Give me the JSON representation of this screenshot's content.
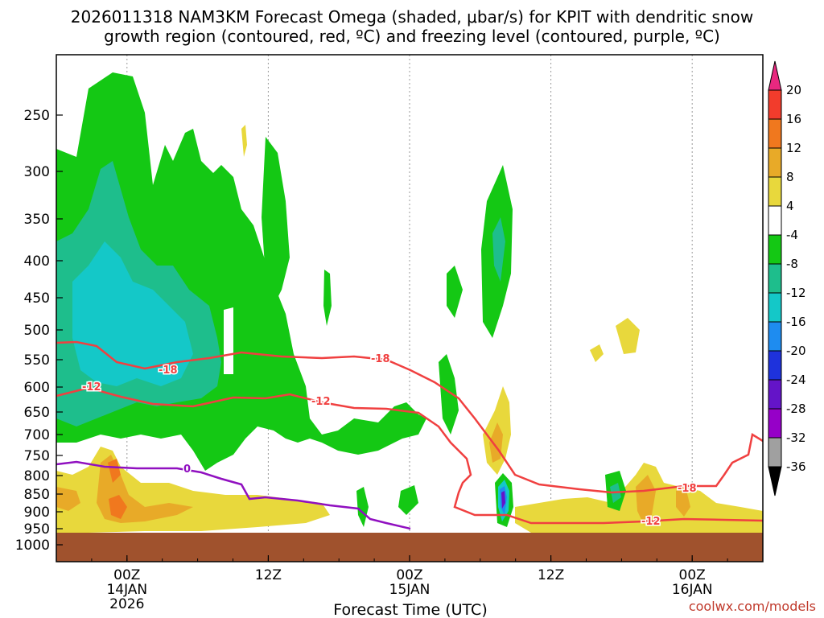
{
  "chart_data": {
    "type": "heatmap",
    "title_line1": "2026011318 NAM3KM Forecast Omega (shaded, μbar/s) for KPIT with dendritic snow",
    "title_line2": "growth region (contoured, red, ºC) and freezing level (contoured, purple, ºC)",
    "xlabel": "Forecast Time (UTC)",
    "credit": "coolwx.com/models",
    "y_ticks": [
      250,
      300,
      350,
      400,
      450,
      500,
      550,
      600,
      650,
      700,
      750,
      800,
      850,
      900,
      950,
      1000
    ],
    "x_ticks": [
      {
        "hour": 6,
        "line1": "00Z",
        "line2": "14JAN",
        "line3": "2026"
      },
      {
        "hour": 18,
        "line1": "12Z",
        "line2": "",
        "line3": ""
      },
      {
        "hour": 30,
        "line1": "00Z",
        "line2": "15JAN",
        "line3": ""
      },
      {
        "hour": 42,
        "line1": "12Z",
        "line2": "",
        "line3": ""
      },
      {
        "hour": 54,
        "line1": "00Z",
        "line2": "16JAN",
        "line3": ""
      }
    ],
    "x_range_hours": [
      0,
      60
    ],
    "colorbar": {
      "labels": [
        "20",
        "16",
        "12",
        "8",
        "4",
        "-4",
        "-8",
        "-12",
        "-16",
        "-20",
        "-24",
        "-28",
        "-32",
        "-36"
      ],
      "colors": [
        "#e8287f",
        "#f23c2c",
        "#f0781e",
        "#e8aa28",
        "#e8d83c",
        "#ffffff",
        "#14c814",
        "#1ebe8c",
        "#14c8c8",
        "#1e8cf0",
        "#1e32dc",
        "#6414c8",
        "#9600c8",
        "#a0a0a0",
        "#000000"
      ]
    },
    "contours": {
      "dgz_top_label": "-18",
      "dgz_bottom_label": "-12",
      "freezing_label": "0",
      "dgz_color": "#f04040",
      "freezing_color": "#9010c0"
    },
    "ground_color": "#a0522d"
  }
}
